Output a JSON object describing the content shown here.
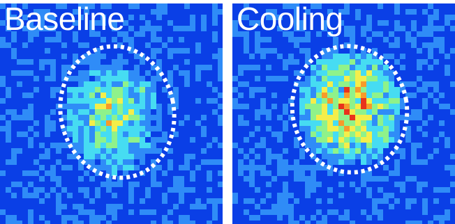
{
  "panels": [
    {
      "label": "Baseline",
      "condition": "baseline"
    },
    {
      "label": "Cooling",
      "condition": "cooling"
    }
  ],
  "colors": {
    "background_blue": "#0a3fe6",
    "roi_outline": "#ffffff",
    "colormap": [
      "#0a3fe6",
      "#2f8cf7",
      "#46dcf2",
      "#8ff28a",
      "#f4ee4a",
      "#f79a2a",
      "#e8331c"
    ]
  },
  "roi": {
    "outline_style": "dashed",
    "shape": "ellipse"
  }
}
